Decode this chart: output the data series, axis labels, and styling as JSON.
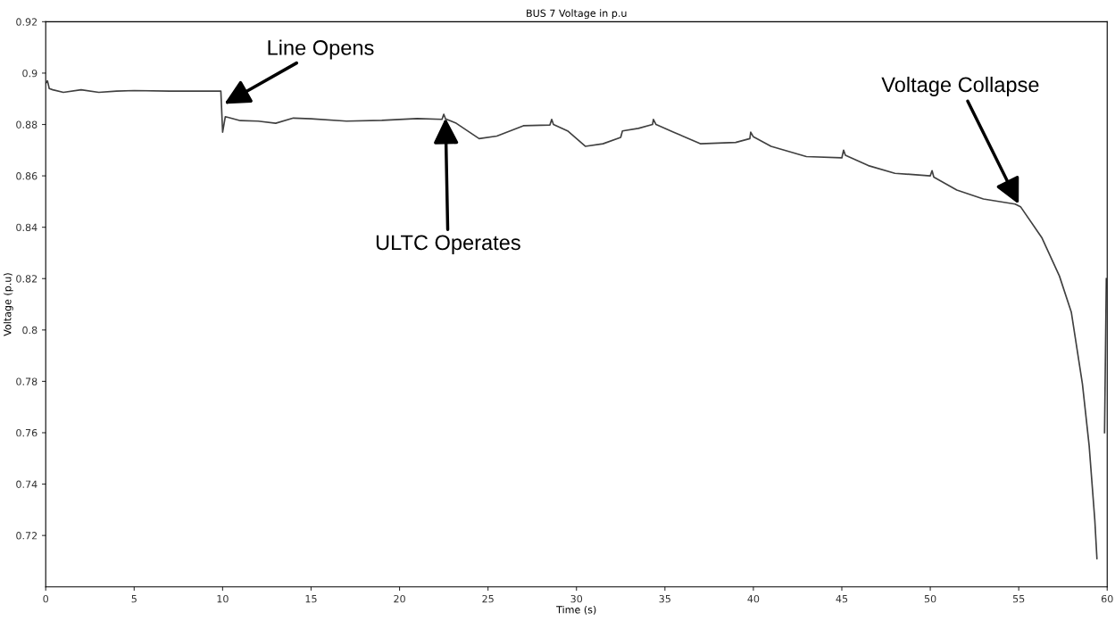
{
  "chart_data": {
    "type": "line",
    "title": "BUS 7 Voltage in p.u",
    "xlabel": "Time (s)",
    "ylabel": "Voltage (p.u)",
    "xlim": [
      0,
      60
    ],
    "ylim": [
      0.7,
      0.92
    ],
    "xticks": [
      0,
      5,
      10,
      15,
      20,
      25,
      30,
      35,
      40,
      45,
      50,
      55,
      60
    ],
    "yticks": [
      0.72,
      0.74,
      0.76,
      0.78,
      0.8,
      0.82,
      0.84,
      0.86,
      0.88,
      0.9,
      0.92
    ],
    "grid": false,
    "legend": false,
    "marker": "none",
    "line_style": "solid",
    "series": [
      {
        "color": "#404040",
        "x": [
          0,
          0.1,
          0.2,
          0.4,
          1.0,
          2.0,
          3.0,
          4.0,
          5.0,
          7.0,
          9.0,
          9.9,
          10.0,
          10.05,
          10.15,
          10.3,
          11,
          12,
          13,
          14,
          15,
          17,
          19,
          21,
          22.4,
          22.5,
          22.6,
          23.2,
          24.5,
          25.5,
          27,
          28.5,
          28.6,
          28.7,
          29.5,
          30.5,
          31.5,
          32.5,
          32.6,
          33.5,
          34.3,
          34.35,
          34.5,
          35.5,
          37,
          39,
          39.8,
          39.85,
          40,
          41,
          43,
          45,
          45.1,
          45.2,
          46.5,
          48,
          50,
          50.1,
          50.2,
          51.5,
          53,
          54.8,
          55.1,
          56.3,
          57.3,
          57.97,
          58.6,
          58.98,
          59.3,
          59.42,
          59.48,
          59.7,
          59.85,
          59.95
        ],
        "values": [
          0.896,
          0.897,
          0.894,
          0.8935,
          0.8925,
          0.8935,
          0.8925,
          0.893,
          0.8932,
          0.893,
          0.893,
          0.893,
          0.877,
          0.879,
          0.883,
          0.8828,
          0.8815,
          0.8813,
          0.8805,
          0.8825,
          0.8822,
          0.8813,
          0.8816,
          0.8823,
          0.882,
          0.884,
          0.8822,
          0.8805,
          0.8745,
          0.8755,
          0.8795,
          0.8798,
          0.882,
          0.88,
          0.8775,
          0.8715,
          0.8725,
          0.875,
          0.8775,
          0.8785,
          0.88,
          0.882,
          0.88,
          0.877,
          0.8725,
          0.873,
          0.8745,
          0.877,
          0.8752,
          0.8715,
          0.8675,
          0.867,
          0.87,
          0.868,
          0.864,
          0.861,
          0.86,
          0.862,
          0.8595,
          0.8545,
          0.851,
          0.849,
          0.848,
          0.836,
          0.821,
          0.807,
          0.779,
          0.755,
          0.726,
          0.711,
          null,
          null,
          0.76,
          0.82
        ]
      }
    ],
    "annotations": [
      {
        "text": "Line Opens",
        "x": 10.1,
        "y": 0.888
      },
      {
        "text": "ULTC Operates",
        "x": 22.6,
        "y": 0.8825
      },
      {
        "text": "Voltage Collapse",
        "x": 55.0,
        "y": 0.849
      }
    ]
  }
}
